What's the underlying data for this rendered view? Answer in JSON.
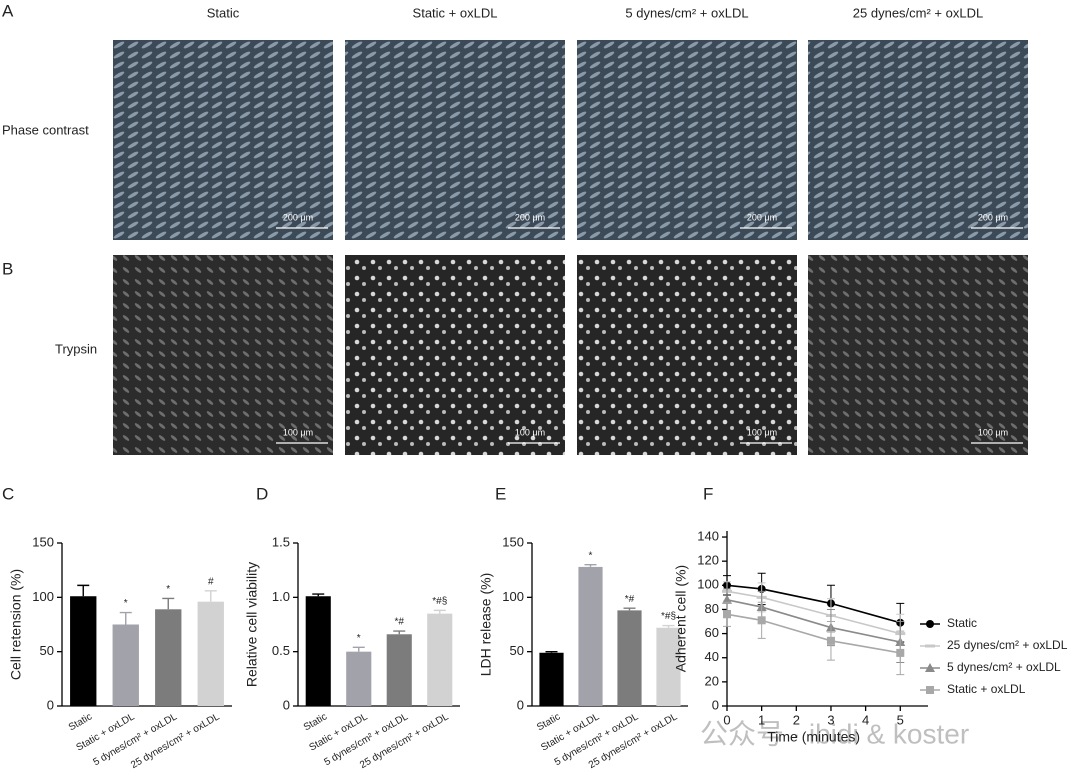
{
  "figure": {
    "panels": [
      "A",
      "B",
      "C",
      "D",
      "E",
      "F"
    ],
    "columns": [
      "Static",
      "Static + oxLDL",
      "5 dynes/cm² + oxLDL",
      "25 dynes/cm² + oxLDL"
    ],
    "rows": [
      "Phase contrast",
      "Trypsin"
    ],
    "scale_bars": [
      "200 μm",
      "100 μm"
    ],
    "watermark": "公众号 · ibidi & koster"
  },
  "chart_data": [
    {
      "type": "bar",
      "ylabel": "Cell retension (%)",
      "categories": [
        "Static",
        "Static + oxLDL",
        "5 dynes/cm² + oxLDL",
        "25 dynes/cm² + oxLDL"
      ],
      "values": [
        101,
        75,
        89,
        96
      ],
      "errors": [
        10,
        11,
        10,
        10
      ],
      "annotations": [
        null,
        "*",
        "*",
        "#"
      ],
      "colors": [
        "#000000",
        "#a2a2aa",
        "#7c7c7c",
        "#d2d2d2"
      ],
      "ylim": [
        0,
        150
      ],
      "yticks": [
        0,
        50,
        100,
        150
      ]
    },
    {
      "type": "bar",
      "ylabel": "Relative cell viability",
      "categories": [
        "Static",
        "Static + oxLDL",
        "5 dynes/cm² + oxLDL",
        "25 dynes/cm² + oxLDL"
      ],
      "values": [
        1.01,
        0.5,
        0.66,
        0.85
      ],
      "errors": [
        0.02,
        0.04,
        0.03,
        0.03
      ],
      "annotations": [
        null,
        "*",
        "*#",
        "*#§"
      ],
      "colors": [
        "#000000",
        "#a2a2aa",
        "#7c7c7c",
        "#d2d2d2"
      ],
      "ylim": [
        0,
        1.5
      ],
      "yticks": [
        0,
        0.5,
        {
          "value": 1,
          "label": "1.0"
        },
        1.5
      ]
    },
    {
      "type": "bar",
      "ylabel": "LDH release (%)",
      "categories": [
        "Static",
        "Static + oxLDL",
        "5 dynes/cm² + oxLDL",
        "25 dynes/cm² + oxLDL"
      ],
      "values": [
        49,
        128,
        88,
        72
      ],
      "errors": [
        1,
        2,
        2,
        2
      ],
      "annotations": [
        null,
        "*",
        "*#",
        "*#§"
      ],
      "colors": [
        "#000000",
        "#a2a2aa",
        "#7c7c7c",
        "#d2d2d2"
      ],
      "ylim": [
        0,
        150
      ],
      "yticks": [
        0,
        50,
        100,
        150
      ]
    },
    {
      "type": "line",
      "xlabel": "Time (minutes)",
      "ylabel": "Adherent cell (%)",
      "x": [
        0,
        1,
        3,
        5
      ],
      "series": [
        {
          "name": "Static",
          "color": "#000000",
          "marker": "circle",
          "values": [
            100,
            97,
            85,
            69
          ],
          "errors": [
            8,
            13,
            15,
            16
          ]
        },
        {
          "name": "25 dynes/cm² + oxLDL",
          "color": "#c8c8c8",
          "marker": "dash",
          "values": [
            95,
            90,
            75,
            60
          ],
          "errors": [
            8,
            12,
            14,
            16
          ]
        },
        {
          "name": "5 dynes/cm² + oxLDL",
          "color": "#8a8a8a",
          "marker": "triangle",
          "values": [
            88,
            82,
            65,
            53
          ],
          "errors": [
            9,
            13,
            15,
            17
          ]
        },
        {
          "name": "Static + oxLDL",
          "color": "#a8a8a8",
          "marker": "square",
          "values": [
            76,
            71,
            54,
            44
          ],
          "errors": [
            10,
            15,
            16,
            18
          ]
        }
      ],
      "xlim": [
        0,
        5.8
      ],
      "xticks": [
        0,
        1,
        2,
        3,
        4,
        5
      ],
      "ylim": [
        0,
        145
      ],
      "yticks": [
        0,
        20,
        40,
        60,
        80,
        100,
        120,
        140
      ],
      "legend": "right"
    }
  ]
}
